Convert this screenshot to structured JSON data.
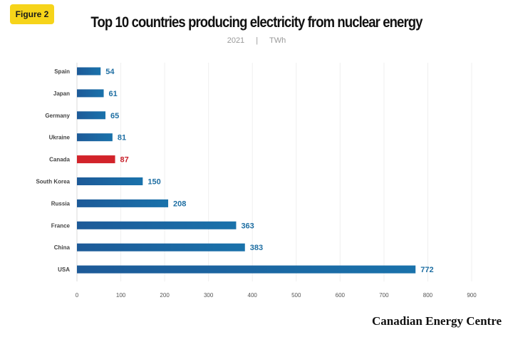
{
  "badge": "Figure 2",
  "chart_data": {
    "type": "bar",
    "orientation": "horizontal",
    "title": "Top 10 countries producing electricity from nuclear energy",
    "subtitle_year": "2021",
    "subtitle_separator": "|",
    "subtitle_unit": "TWh",
    "categories": [
      "Spain",
      "Japan",
      "Germany",
      "Ukraine",
      "Canada",
      "South Korea",
      "Russia",
      "France",
      "China",
      "USA"
    ],
    "values": [
      54,
      61,
      65,
      81,
      87,
      150,
      208,
      363,
      383,
      772
    ],
    "highlight": "Canada",
    "xlim": [
      0,
      900
    ],
    "xticks": [
      0,
      100,
      200,
      300,
      400,
      500,
      600,
      700,
      800,
      900
    ],
    "grid": true,
    "colors": {
      "bar": "#1d5a98",
      "bar_end": "#1a72ab",
      "highlight": "#d2232a",
      "label": "#1f6fa3",
      "highlight_label": "#c8202a"
    }
  },
  "footer": "Canadian Energy Centre"
}
